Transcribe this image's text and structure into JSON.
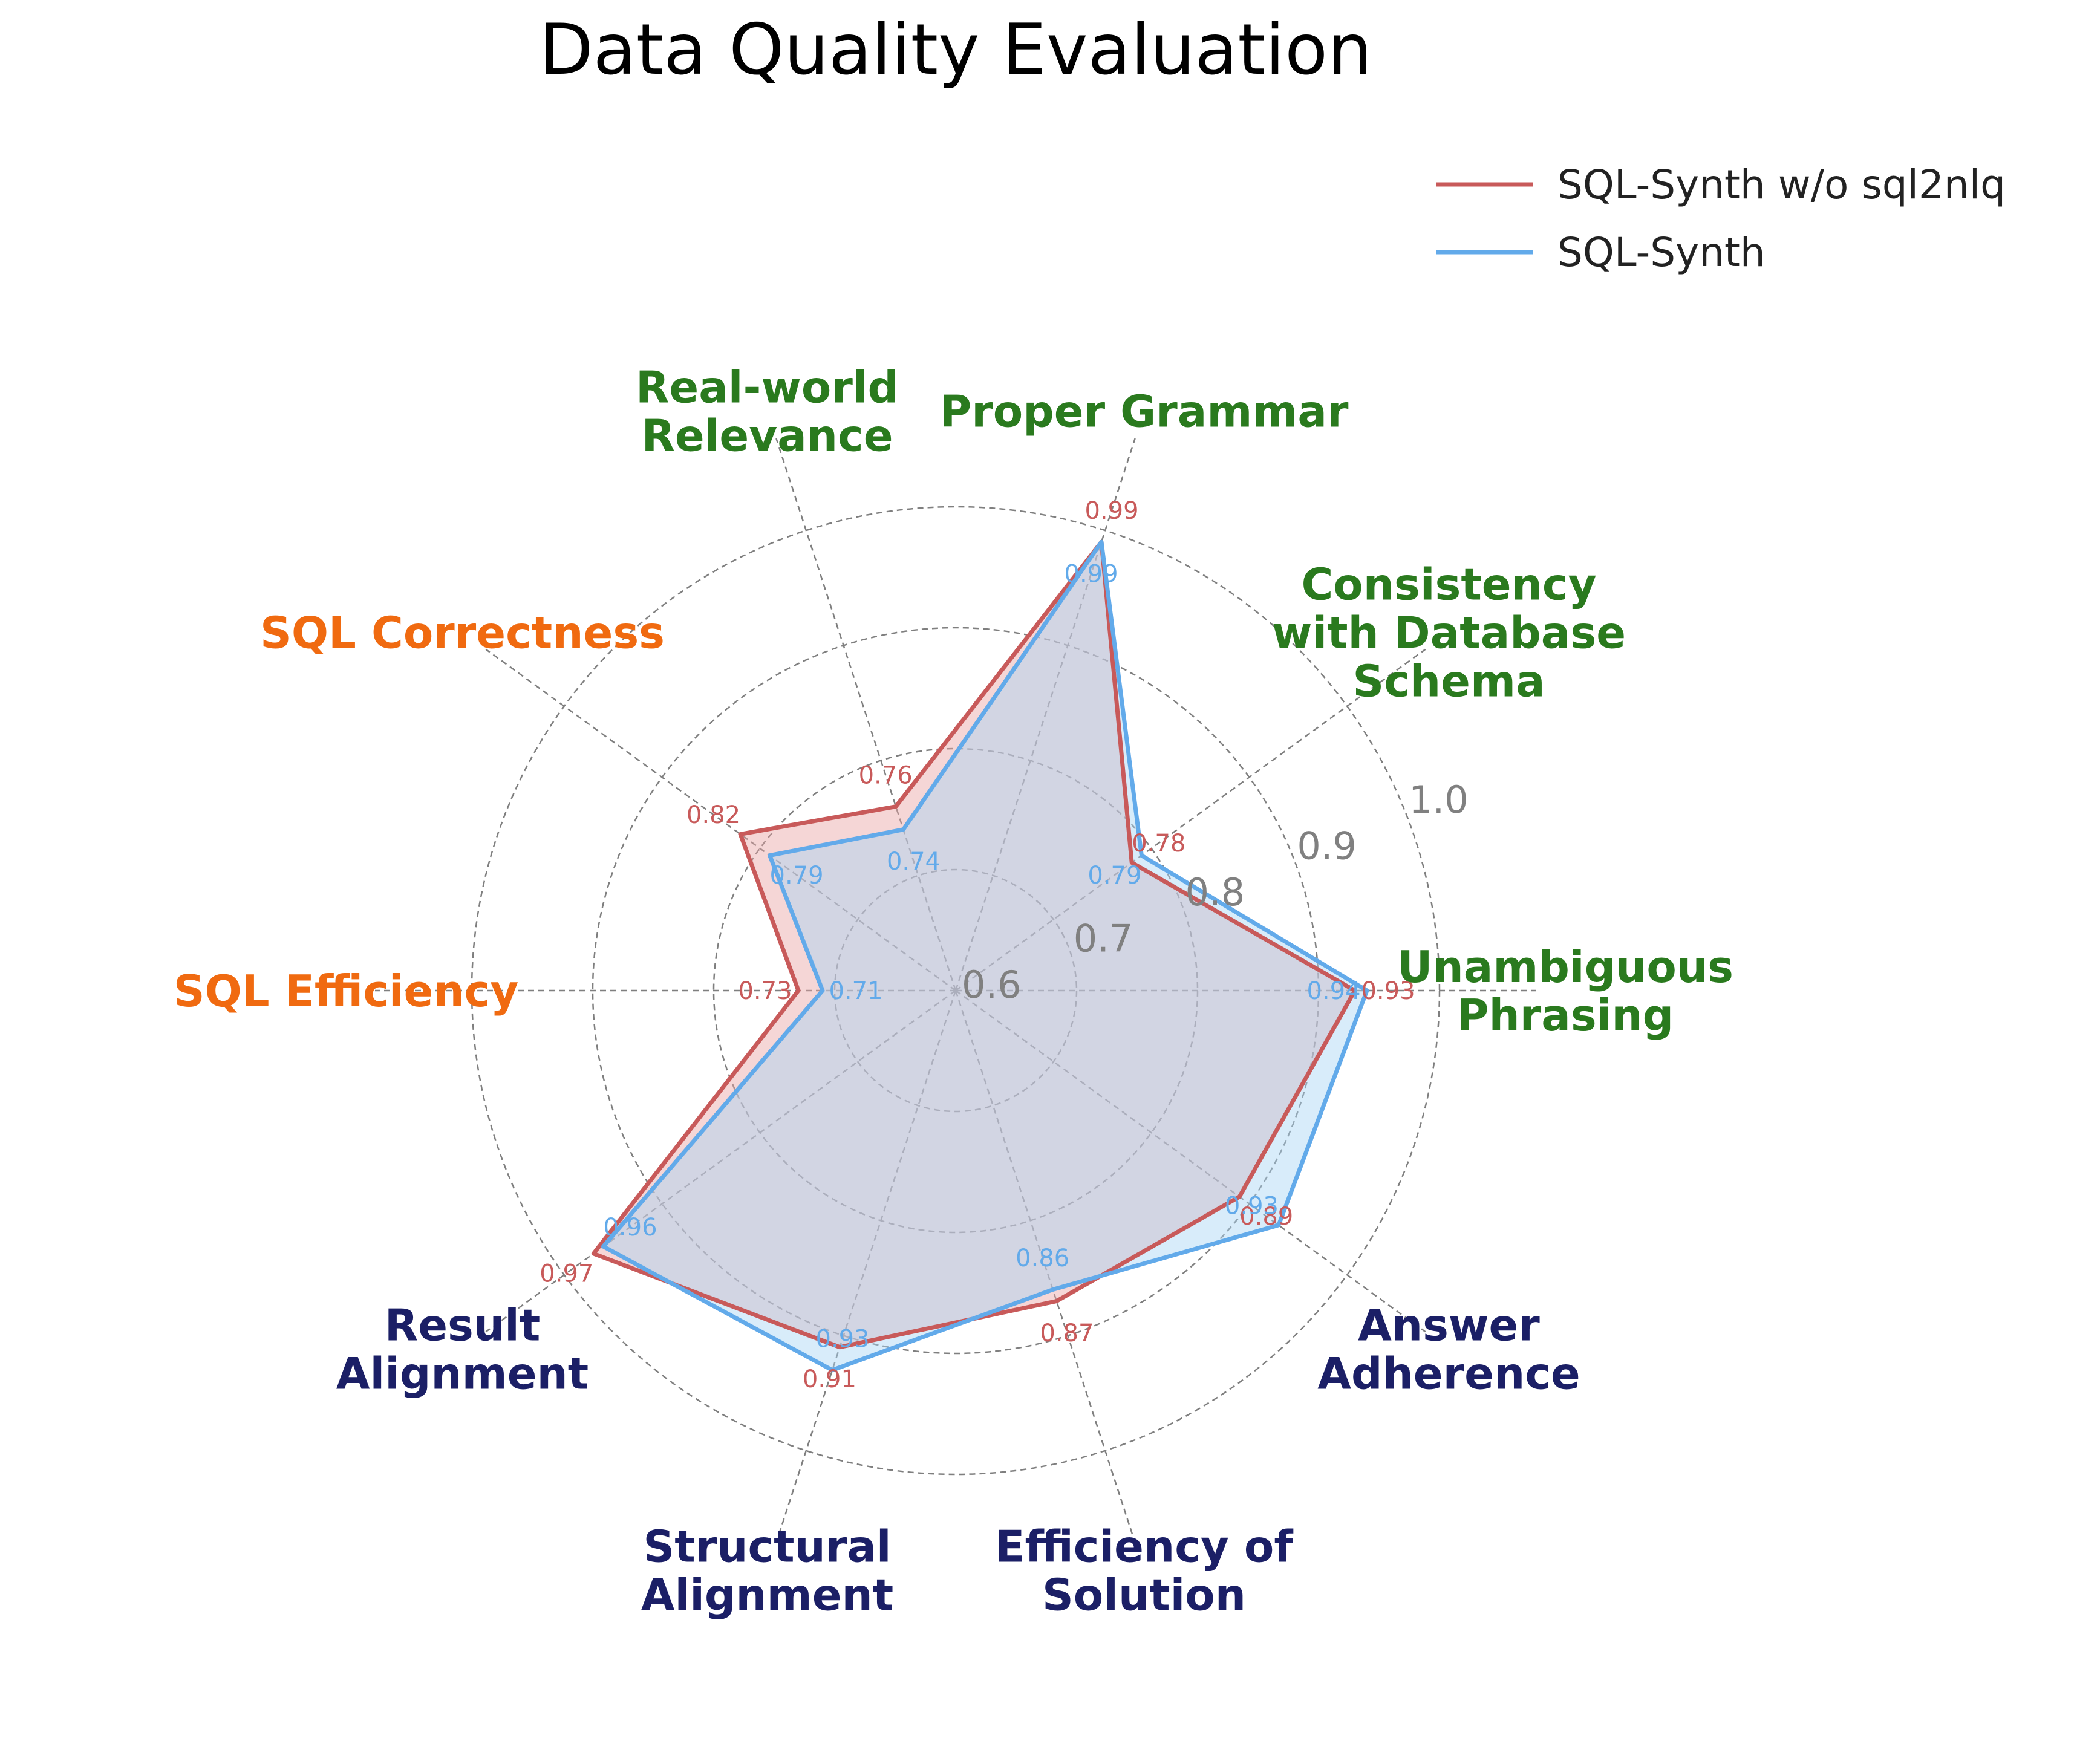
{
  "chart_data": {
    "type": "radar",
    "title": "Data Quality Evaluation",
    "radial_range": [
      0.6,
      1.0
    ],
    "radial_ticks": [
      "0.6",
      "0.7",
      "0.8",
      "0.9",
      "1.0"
    ],
    "grid": true,
    "legend_position": "top-right",
    "categories": [
      {
        "lines": [
          "Unambiguous",
          "Phrasing"
        ],
        "group": "question"
      },
      {
        "lines": [
          "Consistency",
          "with Database",
          "Schema"
        ],
        "group": "question"
      },
      {
        "lines": [
          "Proper Grammar"
        ],
        "group": "question"
      },
      {
        "lines": [
          "Real-world",
          "Relevance"
        ],
        "group": "question"
      },
      {
        "lines": [
          "SQL Correctness"
        ],
        "group": "sql"
      },
      {
        "lines": [
          "SQL Efficiency"
        ],
        "group": "sql"
      },
      {
        "lines": [
          "Result",
          "Alignment"
        ],
        "group": "answer"
      },
      {
        "lines": [
          "Structural",
          "Alignment"
        ],
        "group": "answer"
      },
      {
        "lines": [
          "Efficiency of",
          "Solution"
        ],
        "group": "answer"
      },
      {
        "lines": [
          "Answer",
          "Adherence"
        ],
        "group": "answer"
      }
    ],
    "group_colors": {
      "question": "#2a7a1e",
      "sql": "#f06a10",
      "answer": "#1b1f66"
    },
    "series": [
      {
        "name": "SQL-Synth w/o sql2nlq",
        "color": "#c85a5a",
        "fill": "#e8a3a3",
        "values": [
          0.93,
          0.78,
          0.99,
          0.76,
          0.82,
          0.73,
          0.97,
          0.91,
          0.87,
          0.89
        ],
        "labels": [
          "0.93",
          "0.78",
          "0.99",
          "0.76",
          "0.82",
          "0.73",
          "0.97",
          "0.91",
          "0.87",
          "0.89"
        ]
      },
      {
        "name": "SQL-Synth",
        "color": "#62aaea",
        "fill": "#a9d4f5",
        "values": [
          0.94,
          0.79,
          0.99,
          0.74,
          0.79,
          0.71,
          0.96,
          0.93,
          0.86,
          0.93
        ],
        "labels": [
          "0.94",
          "0.79",
          "0.99",
          "0.74",
          "0.79",
          "0.71",
          "0.96",
          "0.93",
          "0.86",
          "0.93"
        ]
      }
    ]
  }
}
